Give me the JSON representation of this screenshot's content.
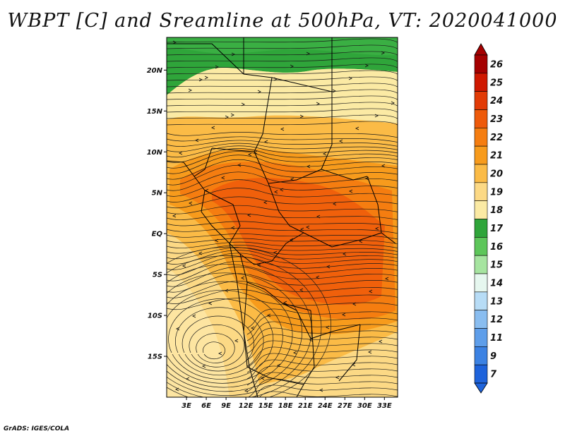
{
  "title": "WBPT [C] and Sreamline at 500hPa, VT: 2020041000",
  "credit": "GrADS: IGES/COLA",
  "map": {
    "variable": "WBPT [C]",
    "level": "500hPa",
    "valid_time": "2020041000",
    "lon_range": [
      0,
      35
    ],
    "lat_range": [
      -20,
      24
    ],
    "lat_labels": [
      "20N",
      "15N",
      "10N",
      "5N",
      "EQ",
      "5S",
      "10S",
      "15S"
    ],
    "lat_values": [
      20,
      15,
      10,
      5,
      0,
      -5,
      -10,
      -15
    ],
    "lon_labels": [
      "3E",
      "6E",
      "9E",
      "12E",
      "15E",
      "18E",
      "21E",
      "24E",
      "27E",
      "30E",
      "33E"
    ],
    "lon_values": [
      3,
      6,
      9,
      12,
      15,
      18,
      21,
      24,
      27,
      30,
      33
    ]
  },
  "colorbar": {
    "labels": [
      "26",
      "25",
      "24",
      "23",
      "22",
      "21",
      "20",
      "19",
      "18",
      "17",
      "16",
      "15",
      "14",
      "13",
      "12",
      "11",
      "9",
      "7"
    ],
    "colors": [
      "#a50000",
      "#cf1800",
      "#e23b06",
      "#ee5a0a",
      "#f57d10",
      "#f79b1c",
      "#fbbb46",
      "#fcd985",
      "#fbeaa4",
      "#2fa53a",
      "#5dc65a",
      "#a6e4a0",
      "#e6f7ef",
      "#b7dcf6",
      "#89bdf0",
      "#5e9eea",
      "#3c82e3",
      "#1e63db"
    ]
  }
}
